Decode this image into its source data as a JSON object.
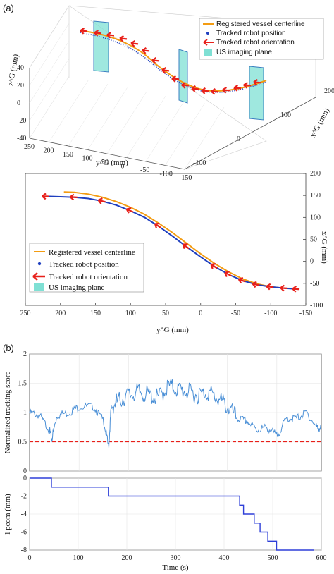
{
  "panel_a_label": "(a)",
  "panel_b_label": "(b)",
  "colors": {
    "centerline": "#f39c12",
    "robot": "#1f3fbf",
    "orientation": "#e8201a",
    "plane": "#7fe0d4",
    "score": "#4a8fd6",
    "threshold": "#e8201a",
    "ipcom": "#2e3fd8"
  },
  "legend": {
    "centerline": "Registered vessel centerline",
    "robot": "Tracked robot position",
    "orientation": "Tracked robot orientation",
    "plane": "US imaging plane"
  },
  "chart_data": [
    {
      "id": "3d",
      "type": "line",
      "view": "3d-perspective",
      "zlabel": "z^G (mm)",
      "ylabel": "y^G (mm)",
      "xlabel": "x^G (mm)",
      "zticks": [
        "-40",
        "-20",
        "0",
        "20",
        "40"
      ],
      "yticks": [
        "250",
        "200",
        "150",
        "100",
        "50",
        "0",
        "-50",
        "-100",
        "-150"
      ],
      "xticks": [
        "200",
        "100",
        "0",
        "-100"
      ],
      "grid": true,
      "legend_position": "top-right"
    },
    {
      "id": "top",
      "type": "line",
      "xlabel": "y^G (mm)",
      "ylabel": "x^G (mm)",
      "xlim": [
        250,
        -150
      ],
      "ylim": [
        -100,
        200
      ],
      "xticks": [
        "250",
        "200",
        "150",
        "100",
        "50",
        "0",
        "-50",
        "-100",
        "-150"
      ],
      "yticks": [
        "200",
        "150",
        "100",
        "50",
        "0",
        "-50",
        "-100"
      ],
      "grid": false,
      "legend_position": "bottom-left",
      "series": [
        {
          "name": "Registered vessel centerline",
          "x": [
            195,
            180,
            160,
            140,
            120,
            100,
            80,
            60,
            40,
            20,
            0,
            -20,
            -40,
            -60,
            -80,
            -100,
            -120,
            -137
          ],
          "y": [
            158,
            157,
            153,
            146,
            136,
            123,
            107,
            87,
            65,
            41,
            17,
            -5,
            -24,
            -40,
            -51,
            -58,
            -61,
            -62
          ]
        },
        {
          "name": "Tracked robot position",
          "x": [
            220,
            200,
            180,
            160,
            140,
            120,
            100,
            80,
            60,
            40,
            20,
            0,
            -20,
            -40,
            -60,
            -80,
            -100,
            -120,
            -137
          ],
          "y": [
            148,
            147,
            146,
            143,
            137,
            128,
            115,
            100,
            80,
            57,
            33,
            10,
            -12,
            -30,
            -44,
            -53,
            -58,
            -61,
            -63
          ]
        }
      ]
    },
    {
      "id": "score",
      "type": "line",
      "xlabel": "",
      "ylabel": "Normalized tracking score",
      "xlim": [
        0,
        590
      ],
      "ylim": [
        0,
        2
      ],
      "yticks": [
        "0",
        "0.5",
        "1",
        "1.5",
        "2"
      ],
      "grid": true,
      "threshold": 0.5,
      "series": [
        {
          "name": "",
          "x": [
            0,
            20,
            40,
            45,
            55,
            80,
            100,
            130,
            150,
            160,
            165,
            180,
            200,
            220,
            240,
            260,
            280,
            300,
            320,
            340,
            360,
            380,
            400,
            420,
            440,
            460,
            480,
            500,
            520,
            540,
            560,
            580,
            590
          ],
          "y": [
            1.0,
            0.95,
            0.7,
            0.55,
            0.95,
            1.0,
            1.1,
            1.1,
            0.85,
            0.4,
            1.1,
            1.2,
            1.3,
            1.35,
            1.3,
            1.25,
            1.45,
            1.4,
            1.35,
            1.3,
            1.35,
            1.25,
            1.1,
            0.9,
            0.85,
            0.7,
            0.75,
            0.6,
            0.9,
            0.9,
            1.0,
            0.75,
            0.72
          ]
        }
      ]
    },
    {
      "id": "ipcom",
      "type": "line",
      "xlabel": "Time (s)",
      "ylabel": "l pcom (mm)",
      "xlim": [
        0,
        600
      ],
      "ylim": [
        -8,
        0
      ],
      "xticks": [
        "0",
        "100",
        "200",
        "300",
        "400",
        "500",
        "600"
      ],
      "yticks": [
        "0",
        "-2",
        "-4",
        "-6",
        "-8"
      ],
      "grid": true,
      "series": [
        {
          "name": "",
          "x": [
            0,
            45,
            45,
            162,
            162,
            432,
            432,
            440,
            440,
            462,
            462,
            474,
            474,
            490,
            490,
            508,
            508,
            585
          ],
          "y": [
            0,
            0,
            -1,
            -1,
            -2,
            -2,
            -3,
            -3,
            -4,
            -4,
            -5,
            -5,
            -6,
            -6,
            -7,
            -7,
            -8,
            -8
          ]
        }
      ]
    }
  ]
}
